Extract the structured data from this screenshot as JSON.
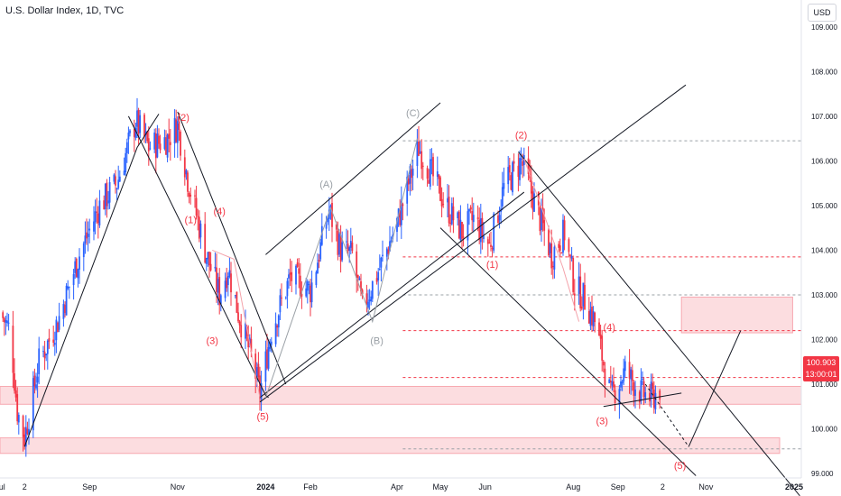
{
  "header": {
    "title": "U.S. Dollar Index, 1D, TVC",
    "unit": "USD"
  },
  "last_price": {
    "value": "100.903",
    "countdown": "13:00:01"
  },
  "colors": {
    "bull": "#2962ff",
    "bear": "#f23645",
    "wave_red": "#f23645",
    "wave_gray": "#9aa0a6",
    "zone_fill": "#fcdde0",
    "zone_edge": "#f7a8b0",
    "line": "#131722"
  },
  "chart_data": {
    "type": "candlestick",
    "y_axis": {
      "range": [
        98.9,
        109.4
      ],
      "ticks": [
        {
          "v": 109,
          "label": "109.000"
        },
        {
          "v": 108,
          "label": "108.000"
        },
        {
          "v": 107,
          "label": "107.000"
        },
        {
          "v": 106,
          "label": "106.000"
        },
        {
          "v": 105,
          "label": "105.000"
        },
        {
          "v": 104,
          "label": "104.000"
        },
        {
          "v": 103,
          "label": "103.000"
        },
        {
          "v": 102,
          "label": "102.000"
        },
        {
          "v": 101,
          "label": "101.000"
        },
        {
          "v": 100,
          "label": "100.000"
        },
        {
          "v": 99,
          "label": "99.000"
        }
      ]
    },
    "x_axis": {
      "range": [
        "2023-07-01",
        "2025-01-06"
      ],
      "ticks": [
        {
          "d": "2023-07-01",
          "label": "Jul",
          "bold": false
        },
        {
          "d": "2023-07-18",
          "label": "2",
          "bold": false
        },
        {
          "d": "2023-09-01",
          "label": "Sep",
          "bold": false
        },
        {
          "d": "2023-11-01",
          "label": "Nov",
          "bold": false
        },
        {
          "d": "2024-01-01",
          "label": "2024",
          "bold": true
        },
        {
          "d": "2024-02-01",
          "label": "Feb",
          "bold": false
        },
        {
          "d": "2024-04-01",
          "label": "Apr",
          "bold": false
        },
        {
          "d": "2024-05-01",
          "label": "May",
          "bold": false
        },
        {
          "d": "2024-06-01",
          "label": "Jun",
          "bold": false
        },
        {
          "d": "2024-08-01",
          "label": "Aug",
          "bold": false
        },
        {
          "d": "2024-09-01",
          "label": "Sep",
          "bold": false
        },
        {
          "d": "2024-10-02",
          "label": "2",
          "bold": false
        },
        {
          "d": "2024-11-01",
          "label": "Nov",
          "bold": false
        },
        {
          "d": "2025-01-01",
          "label": "2025",
          "bold": true
        }
      ]
    },
    "price_path": [
      {
        "d": "2023-07-01",
        "c": 102.6
      },
      {
        "d": "2023-07-08",
        "c": 102.2
      },
      {
        "d": "2023-07-13",
        "c": 100.4
      },
      {
        "d": "2023-07-18",
        "c": 99.8
      },
      {
        "d": "2023-07-28",
        "c": 101.5
      },
      {
        "d": "2023-08-10",
        "c": 102.4
      },
      {
        "d": "2023-08-25",
        "c": 103.9
      },
      {
        "d": "2023-09-08",
        "c": 105.0
      },
      {
        "d": "2023-09-20",
        "c": 105.5
      },
      {
        "d": "2023-10-03",
        "c": 106.9
      },
      {
        "d": "2023-10-12",
        "c": 106.3
      },
      {
        "d": "2023-10-25",
        "c": 106.5
      },
      {
        "d": "2023-11-01",
        "c": 106.8
      },
      {
        "d": "2023-11-08",
        "c": 105.6
      },
      {
        "d": "2023-11-20",
        "c": 104.0
      },
      {
        "d": "2023-11-30",
        "c": 103.0
      },
      {
        "d": "2023-12-06",
        "c": 103.6
      },
      {
        "d": "2023-12-13",
        "c": 102.6
      },
      {
        "d": "2023-12-22",
        "c": 101.6
      },
      {
        "d": "2023-12-28",
        "c": 100.8
      },
      {
        "d": "2024-01-05",
        "c": 102.2
      },
      {
        "d": "2024-01-18",
        "c": 103.4
      },
      {
        "d": "2024-02-01",
        "c": 103.1
      },
      {
        "d": "2024-02-14",
        "c": 104.9
      },
      {
        "d": "2024-02-22",
        "c": 104.0
      },
      {
        "d": "2024-03-01",
        "c": 103.9
      },
      {
        "d": "2024-03-08",
        "c": 102.7
      },
      {
        "d": "2024-03-20",
        "c": 103.6
      },
      {
        "d": "2024-04-02",
        "c": 104.7
      },
      {
        "d": "2024-04-16",
        "c": 106.3
      },
      {
        "d": "2024-04-25",
        "c": 105.7
      },
      {
        "d": "2024-05-05",
        "c": 105.0
      },
      {
        "d": "2024-05-16",
        "c": 104.4
      },
      {
        "d": "2024-05-24",
        "c": 104.7
      },
      {
        "d": "2024-06-04",
        "c": 104.1
      },
      {
        "d": "2024-06-14",
        "c": 105.4
      },
      {
        "d": "2024-06-26",
        "c": 106.0
      },
      {
        "d": "2024-07-05",
        "c": 105.1
      },
      {
        "d": "2024-07-17",
        "c": 103.9
      },
      {
        "d": "2024-07-26",
        "c": 104.4
      },
      {
        "d": "2024-08-02",
        "c": 103.2
      },
      {
        "d": "2024-08-09",
        "c": 102.9
      },
      {
        "d": "2024-08-16",
        "c": 102.4
      },
      {
        "d": "2024-08-27",
        "c": 100.7
      },
      {
        "d": "2024-09-06",
        "c": 101.3
      },
      {
        "d": "2024-09-17",
        "c": 100.8
      },
      {
        "d": "2024-09-25",
        "c": 100.7
      },
      {
        "d": "2024-09-30",
        "c": 100.9
      }
    ],
    "levels": [
      {
        "v": 106.45,
        "from": "2024-04-05",
        "to": "2025-01-06",
        "color": "#9aa0a6"
      },
      {
        "v": 103.85,
        "from": "2024-04-05",
        "to": "2025-01-06",
        "color": "#f23645"
      },
      {
        "v": 103.0,
        "from": "2024-04-05",
        "to": "2025-01-06",
        "color": "#9aa0a6"
      },
      {
        "v": 102.2,
        "from": "2024-04-05",
        "to": "2025-01-06",
        "color": "#f23645"
      },
      {
        "v": 101.15,
        "from": "2024-04-05",
        "to": "2025-01-06",
        "color": "#f23645"
      },
      {
        "v": 99.55,
        "from": "2024-04-05",
        "to": "2025-01-06",
        "color": "#9aa0a6"
      }
    ],
    "zones": [
      {
        "d0": "2023-07-01",
        "d1": "2025-01-06",
        "v0": 100.55,
        "v1": 100.95
      },
      {
        "d0": "2023-07-01",
        "d1": "2024-12-22",
        "v0": 99.45,
        "v1": 99.8
      },
      {
        "d0": "2024-10-15",
        "d1": "2024-12-31",
        "v0": 102.15,
        "v1": 102.95
      }
    ],
    "trendlines": [
      {
        "p": [
          [
            "2023-07-18",
            99.6
          ],
          [
            "2023-10-04",
            106.3
          ],
          [
            "2023-10-19",
            107.05
          ]
        ]
      },
      {
        "p": [
          [
            "2023-09-28",
            107.0
          ],
          [
            "2024-01-01",
            100.75
          ],
          [
            "2024-01-03",
            100.7
          ]
        ]
      },
      {
        "p": [
          [
            "2023-11-01",
            107.1
          ],
          [
            "2024-01-15",
            101.0
          ]
        ]
      },
      {
        "p": [
          [
            "2023-12-28",
            100.7
          ],
          [
            "2024-06-28",
            105.3
          ]
        ]
      },
      {
        "p": [
          [
            "2023-12-28",
            100.6
          ],
          [
            "2024-10-18",
            107.7
          ]
        ]
      },
      {
        "p": [
          [
            "2024-01-01",
            103.9
          ],
          [
            "2024-05-01",
            107.3
          ]
        ]
      },
      {
        "p": [
          [
            "2024-05-01",
            104.5
          ],
          [
            "2024-10-25",
            98.95
          ]
        ]
      },
      {
        "p": [
          [
            "2024-06-24",
            106.2
          ],
          [
            "2025-01-05",
            98.5
          ]
        ]
      },
      {
        "p": [
          [
            "2024-08-22",
            100.5
          ],
          [
            "2024-10-15",
            100.8
          ]
        ]
      },
      {
        "p": [
          [
            "2024-10-20",
            99.6
          ],
          [
            "2024-11-25",
            102.2
          ]
        ]
      }
    ],
    "dashed_paths": [
      {
        "p": [
          [
            "2024-09-20",
            101.0
          ],
          [
            "2024-10-20",
            99.6
          ]
        ],
        "color": "#131722"
      }
    ],
    "wave_paths": [
      {
        "color": "#9aa0a6",
        "p": [
          [
            "2024-01-01",
            100.7
          ],
          [
            "2024-02-15",
            104.95
          ],
          [
            "2024-03-15",
            102.4
          ],
          [
            "2024-04-15",
            106.5
          ]
        ]
      },
      {
        "color": "#f4a2aa",
        "p": [
          [
            "2023-11-25",
            104.0
          ],
          [
            "2023-12-10",
            103.8
          ],
          [
            "2023-12-28",
            100.7
          ]
        ]
      },
      {
        "color": "#f4a2aa",
        "p": [
          [
            "2024-06-28",
            106.05
          ],
          [
            "2024-07-25",
            103.6
          ],
          [
            "2024-08-05",
            102.4
          ]
        ]
      }
    ],
    "wave_labels": [
      {
        "t": "(2)",
        "d": "2023-11-05",
        "v": 106.9,
        "color": "#f23645"
      },
      {
        "t": "(1)",
        "d": "2023-11-10",
        "v": 104.6,
        "color": "#f23645"
      },
      {
        "t": "(4)",
        "d": "2023-11-30",
        "v": 104.8,
        "color": "#f23645"
      },
      {
        "t": "(3)",
        "d": "2023-11-25",
        "v": 101.9,
        "color": "#f23645"
      },
      {
        "t": "(5)",
        "d": "2023-12-30",
        "v": 100.2,
        "color": "#f23645"
      },
      {
        "t": "(A)",
        "d": "2024-02-12",
        "v": 105.4,
        "color": "#9aa0a6"
      },
      {
        "t": "(B)",
        "d": "2024-03-18",
        "v": 101.9,
        "color": "#9aa0a6"
      },
      {
        "t": "(C)",
        "d": "2024-04-12",
        "v": 107.0,
        "color": "#9aa0a6"
      },
      {
        "t": "(2)",
        "d": "2024-06-26",
        "v": 106.5,
        "color": "#f23645"
      },
      {
        "t": "(1)",
        "d": "2024-06-06",
        "v": 103.6,
        "color": "#f23645"
      },
      {
        "t": "(4)",
        "d": "2024-08-26",
        "v": 102.2,
        "color": "#f23645"
      },
      {
        "t": "(3)",
        "d": "2024-08-21",
        "v": 100.1,
        "color": "#f23645"
      },
      {
        "t": "(5)",
        "d": "2024-10-14",
        "v": 99.1,
        "color": "#f23645"
      }
    ]
  }
}
